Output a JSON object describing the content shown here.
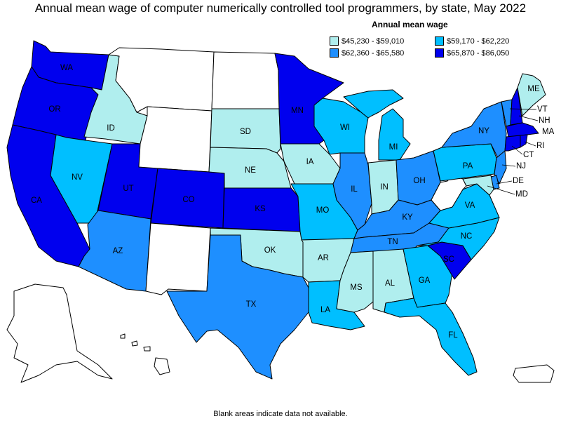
{
  "title": "Annual mean wage of computer numerically controlled tool programmers, by state, May 2022",
  "legend": {
    "title": "Annual mean wage",
    "bins": [
      {
        "label": "$45,230 - $59,010",
        "color": "#b0eeee",
        "key": "b1"
      },
      {
        "label": "$59,170 - $62,220",
        "color": "#00bfff",
        "key": "b2"
      },
      {
        "label": "$62,360 - $65,580",
        "color": "#1e8fff",
        "key": "b3"
      },
      {
        "label": "$65,870 - $86,050",
        "color": "#0000ee",
        "key": "b4"
      }
    ]
  },
  "no_data_color": "#ffffff",
  "states": {
    "WA": "b4",
    "OR": "b4",
    "CA": "b4",
    "ID": "b1",
    "NV": "b2",
    "UT": "b4",
    "AZ": "b3",
    "MT": null,
    "WY": null,
    "CO": "b4",
    "NM": null,
    "ND": null,
    "SD": "b1",
    "NE": "b1",
    "KS": "b4",
    "OK": "b1",
    "TX": "b3",
    "MN": "b4",
    "IA": "b1",
    "MO": "b2",
    "AR": "b1",
    "LA": "b2",
    "WI": "b2",
    "IL": "b3",
    "MI": "b2",
    "IN": "b1",
    "OH": "b3",
    "KY": "b3",
    "TN": "b3",
    "MS": "b1",
    "AL": "b1",
    "GA": "b2",
    "FL": "b2",
    "SC": "b4",
    "NC": "b2",
    "VA": "b2",
    "WV": null,
    "PA": "b2",
    "NY": "b3",
    "VT": "b3",
    "NH": "b4",
    "ME": "b1",
    "MA": "b4",
    "RI": "b4",
    "CT": "b4",
    "NJ": "b3",
    "DE": "b3",
    "MD": "b1",
    "AK": null,
    "HI": null,
    "PR": null
  },
  "state_labels": [
    "WA",
    "OR",
    "CA",
    "ID",
    "NV",
    "UT",
    "AZ",
    "CO",
    "SD",
    "NE",
    "KS",
    "OK",
    "TX",
    "MN",
    "IA",
    "MO",
    "AR",
    "LA",
    "WI",
    "IL",
    "MI",
    "IN",
    "OH",
    "KY",
    "TN",
    "MS",
    "AL",
    "GA",
    "FL",
    "SC",
    "NC",
    "VA",
    "PA",
    "NY",
    "ME",
    "VT",
    "NH",
    "MA",
    "RI",
    "CT",
    "NJ",
    "DE",
    "MD"
  ],
  "footnote": "Blank areas indicate data not available."
}
